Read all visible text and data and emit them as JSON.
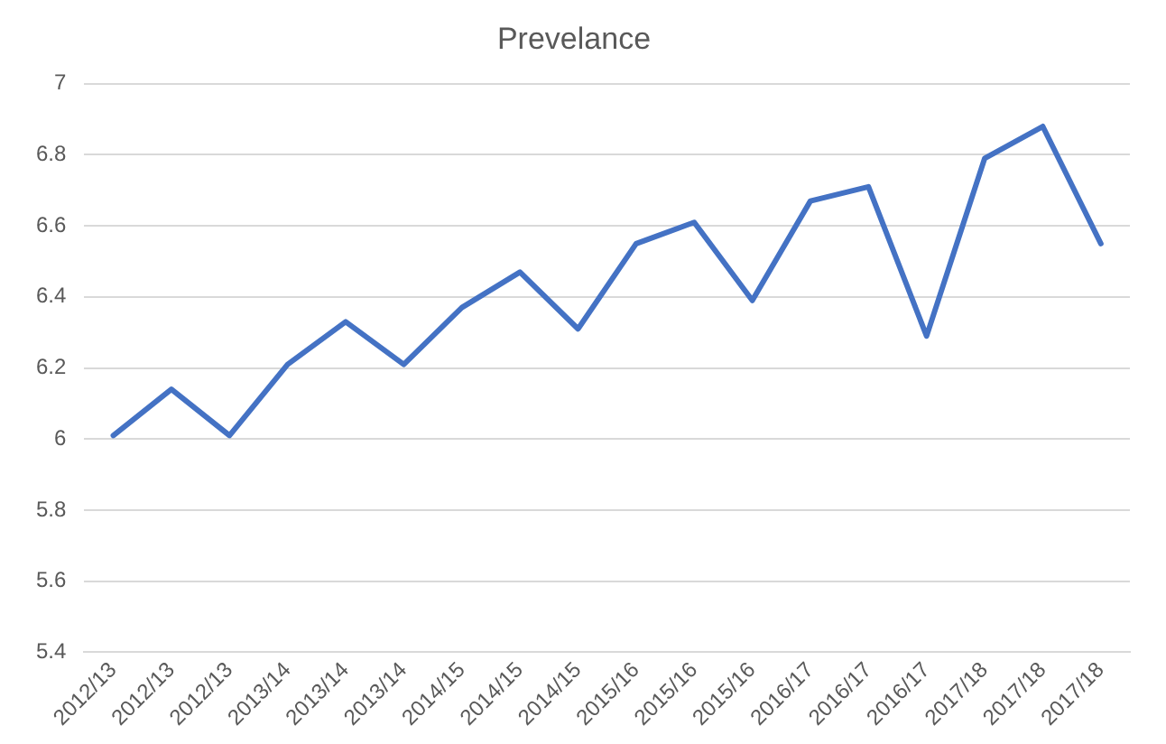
{
  "chart_data": {
    "type": "line",
    "title": "Prevelance",
    "categories": [
      "2012/13",
      "2012/13",
      "2012/13",
      "2013/14",
      "2013/14",
      "2013/14",
      "2014/15",
      "2014/15",
      "2014/15",
      "2015/16",
      "2015/16",
      "2015/16",
      "2016/17",
      "2016/17",
      "2016/17",
      "2017/18",
      "2017/18",
      "2017/18"
    ],
    "series": [
      {
        "color": "#4472c4",
        "values": [
          6.01,
          6.14,
          6.01,
          6.21,
          6.33,
          6.21,
          6.37,
          6.47,
          6.31,
          6.55,
          6.61,
          6.39,
          6.67,
          6.71,
          6.29,
          6.79,
          6.88,
          6.55
        ]
      }
    ],
    "ylim": [
      5.4,
      7
    ],
    "yticks": [
      5.4,
      5.6,
      5.8,
      6,
      6.2,
      6.4,
      6.6,
      6.8,
      7
    ],
    "grid": "y",
    "legend": false,
    "marker": "none",
    "line_style": "solid"
  }
}
